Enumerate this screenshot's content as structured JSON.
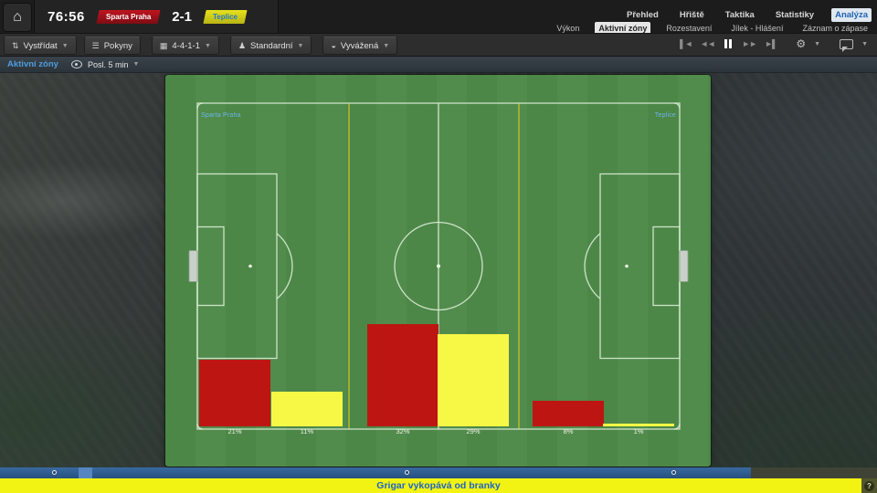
{
  "header": {
    "time": "76:56",
    "score": "2-1",
    "home_team": "Sparta Praha",
    "away_team": "Teplice",
    "tabs": [
      "Přehled",
      "Hřiště",
      "Taktika",
      "Statistiky",
      "Analýza"
    ],
    "active_tab": "Analýza",
    "subtabs": [
      "Výkon",
      "Aktivní zóny",
      "Rozestavení",
      "Jílek - Hlášení",
      "Záznam o zápase"
    ],
    "active_subtab": "Aktivní zóny"
  },
  "toolbar": {
    "substitute": "Vystřídat",
    "instructions": "Pokyny",
    "formation": "4-4-1-1",
    "strategy": "Standardní",
    "philosophy": "Vyvážená"
  },
  "viewbar": {
    "title": "Aktivní zóny",
    "period": "Posl. 5 min"
  },
  "pitch": {
    "home_label": "Sparta Praha",
    "away_label": "Teplice"
  },
  "chart_data": {
    "type": "bar",
    "title": "Aktivní zóny — Posl. 5 min",
    "categories": [
      "defensive-third",
      "middle-third",
      "attacking-third"
    ],
    "series": [
      {
        "name": "Sparta Praha",
        "color": "#bd1612",
        "values": [
          21,
          32,
          8
        ]
      },
      {
        "name": "Teplice",
        "color": "#f7f746",
        "values": [
          11,
          29,
          1
        ]
      }
    ],
    "unit": "%",
    "value_labels": [
      "21%",
      "11%",
      "32%",
      "29%",
      "8%",
      "1%"
    ]
  },
  "timeline": {
    "progress_pct": 85.6,
    "highlight": {
      "start_pct": 9.0,
      "width_pct": 1.5
    },
    "marker_pcts": [
      6.1,
      46.4,
      76.8
    ]
  },
  "ticker": {
    "text": "Grigar vykopává od branky",
    "help": "?"
  },
  "colors": {
    "home": "#bd1612",
    "away": "#f7f746",
    "pitch": "#4e8a49",
    "accent_blue": "#1c64c8",
    "ticker_yellow": "#f2f213"
  }
}
